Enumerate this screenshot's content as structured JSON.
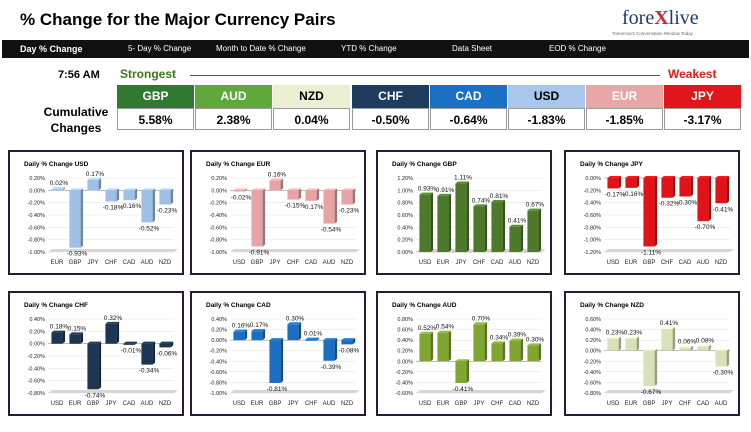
{
  "header": {
    "title": "% Change for the Major Currency Pairs",
    "logo_pre": "fore",
    "logo_x": "X",
    "logo_post": "live",
    "logo_tagline": "Tomorrow's Conversation Window Today"
  },
  "nav": {
    "tabs": [
      {
        "label": "Day % Change",
        "active": true
      },
      {
        "label": "5- Day % Change",
        "active": false
      },
      {
        "label": "Month to Date % Change",
        "active": false
      },
      {
        "label": "YTD % Change",
        "active": false
      },
      {
        "label": "Data Sheet",
        "active": false
      },
      {
        "label": "EOD % Change",
        "active": false
      }
    ]
  },
  "summary": {
    "time": "7:56 AM",
    "strongest_label": "Strongest",
    "weakest_label": "Weakest",
    "cumulative_label": "Cumulative Changes",
    "currencies": [
      {
        "name": "GBP",
        "value": "5.58%",
        "color": "#2f7a30",
        "text_color": "#ffffff"
      },
      {
        "name": "AUD",
        "value": "2.38%",
        "color": "#5fa83a",
        "text_color": "#ffffff"
      },
      {
        "name": "NZD",
        "value": "0.04%",
        "color": "#ecefd2",
        "text_color": "#000000"
      },
      {
        "name": "CHF",
        "value": "-0.50%",
        "color": "#1f3c5e",
        "text_color": "#ffffff"
      },
      {
        "name": "CAD",
        "value": "-0.64%",
        "color": "#1b70c4",
        "text_color": "#ffffff"
      },
      {
        "name": "USD",
        "value": "-1.83%",
        "color": "#a9c7ec",
        "text_color": "#000000"
      },
      {
        "name": "EUR",
        "value": "-1.85%",
        "color": "#e8a6a6",
        "text_color": "#ffffff"
      },
      {
        "name": "JPY",
        "value": "-3.17%",
        "color": "#e0161a",
        "text_color": "#ffffff"
      }
    ]
  },
  "chart_data": [
    {
      "type": "bar",
      "title": "Daily % Change USD",
      "color": "#9fc0e6",
      "categories": [
        "EUR",
        "GBP",
        "JPY",
        "CHF",
        "CAD",
        "AUD",
        "NZD"
      ],
      "values": [
        0.02,
        -0.93,
        0.17,
        -0.18,
        -0.16,
        -0.52,
        -0.23
      ],
      "labels": [
        "0.02%",
        "-0.93%",
        "0.17%",
        "-0.18%",
        "-0.16%",
        "-0.52%",
        "-0.23%"
      ],
      "ylim": [
        -1.0,
        0.2
      ],
      "yticks": [
        "0.20%",
        "0.00%",
        "-0.20%",
        "-0.40%",
        "-0.60%",
        "-0.80%",
        "-1.00%"
      ]
    },
    {
      "type": "bar",
      "title": "Daily % Change EUR",
      "color": "#e8a4a4",
      "categories": [
        "USD",
        "GBP",
        "JPY",
        "CHF",
        "CAD",
        "AUD",
        "NZD"
      ],
      "values": [
        -0.02,
        -0.91,
        0.16,
        -0.15,
        -0.17,
        -0.54,
        -0.23
      ],
      "labels": [
        "-0.02%",
        "-0.91%",
        "0.16%",
        "-0.15%",
        "-0.17%",
        "-0.54%",
        "-0.23%"
      ],
      "ylim": [
        -1.0,
        0.2
      ],
      "yticks": [
        "0.20%",
        "0.00%",
        "-0.20%",
        "-0.40%",
        "-0.60%",
        "-0.80%",
        "-1.00%"
      ]
    },
    {
      "type": "bar",
      "title": "Daily % Change GBP",
      "color": "#4d7a2a",
      "categories": [
        "USD",
        "EUR",
        "JPY",
        "CHF",
        "CAD",
        "AUD",
        "NZD"
      ],
      "values": [
        0.93,
        0.91,
        1.11,
        0.74,
        0.81,
        0.41,
        0.67
      ],
      "labels": [
        "0.93%",
        "0.91%",
        "1.11%",
        "0.74%",
        "0.81%",
        "0.41%",
        "0.67%"
      ],
      "ylim": [
        0.0,
        1.2
      ],
      "yticks": [
        "1.20%",
        "1.00%",
        "0.80%",
        "0.60%",
        "0.40%",
        "0.20%",
        "0.00%"
      ]
    },
    {
      "type": "bar",
      "title": "Daily % Change JPY",
      "color": "#e01418",
      "categories": [
        "USD",
        "EUR",
        "GBP",
        "CHF",
        "CAD",
        "AUD",
        "NZD"
      ],
      "values": [
        -0.17,
        -0.16,
        -1.11,
        -0.32,
        -0.3,
        -0.7,
        -0.41
      ],
      "labels": [
        "-0.17%",
        "-0.16%",
        "-1.11%",
        "-0.32%",
        "-0.30%",
        "-0.70%",
        "-0.41%"
      ],
      "ylim": [
        -1.2,
        0.0
      ],
      "yticks": [
        "0.00%",
        "-0.20%",
        "-0.40%",
        "-0.60%",
        "-0.80%",
        "-1.00%",
        "-1.20%"
      ]
    },
    {
      "type": "bar",
      "title": "Daily % Change CHF",
      "color": "#1c3552",
      "categories": [
        "USD",
        "EUR",
        "GBP",
        "JPY",
        "CAD",
        "AUD",
        "NZD"
      ],
      "values": [
        0.18,
        0.15,
        -0.74,
        0.32,
        -0.01,
        -0.34,
        -0.06
      ],
      "labels": [
        "0.18%",
        "0.15%",
        "-0.74%",
        "0.32%",
        "-0.01%",
        "-0.34%",
        "-0.06%"
      ],
      "ylim": [
        -0.8,
        0.4
      ],
      "yticks": [
        "0.40%",
        "0.20%",
        "0.00%",
        "-0.20%",
        "-0.40%",
        "-0.60%",
        "-0.80%"
      ]
    },
    {
      "type": "bar",
      "title": "Daily % Change CAD",
      "color": "#1b6fc2",
      "categories": [
        "USD",
        "EUR",
        "GBP",
        "JPY",
        "CHF",
        "AUD",
        "NZD"
      ],
      "values": [
        0.16,
        0.17,
        -0.81,
        0.3,
        0.01,
        -0.39,
        -0.08
      ],
      "labels": [
        "0.16%",
        "0.17%",
        "-0.81%",
        "0.30%",
        "0.01%",
        "-0.39%",
        "-0.08%"
      ],
      "ylim": [
        -1.0,
        0.4
      ],
      "yticks": [
        "0.40%",
        "0.20%",
        "0.00%",
        "-0.20%",
        "-0.40%",
        "-0.60%",
        "-0.80%",
        "-1.00%"
      ]
    },
    {
      "type": "bar",
      "title": "Daily % Change AUD",
      "color": "#7ea630",
      "categories": [
        "USD",
        "EUR",
        "GBP",
        "JPY",
        "CHF",
        "CAD",
        "NZD"
      ],
      "values": [
        0.52,
        0.54,
        -0.41,
        0.7,
        0.34,
        0.39,
        0.3
      ],
      "labels": [
        "0.52%",
        "0.54%",
        "-0.41%",
        "0.70%",
        "0.34%",
        "0.39%",
        "0.30%"
      ],
      "ylim": [
        -0.6,
        0.8
      ],
      "yticks": [
        "0.80%",
        "0.60%",
        "0.40%",
        "0.20%",
        "0.00%",
        "-0.20%",
        "-0.40%",
        "-0.60%"
      ]
    },
    {
      "type": "bar",
      "title": "Daily % Change NZD",
      "color": "#d8e2b8",
      "categories": [
        "USD",
        "EUR",
        "GBP",
        "JPY",
        "CHF",
        "CAD",
        "AUD"
      ],
      "values": [
        0.23,
        0.23,
        -0.67,
        0.41,
        0.06,
        0.08,
        -0.3
      ],
      "labels": [
        "0.23%",
        "0.23%",
        "-0.67%",
        "0.41%",
        "0.06%",
        "0.08%",
        "-0.30%"
      ],
      "ylim": [
        -0.8,
        0.6
      ],
      "yticks": [
        "0.60%",
        "0.40%",
        "0.20%",
        "0.00%",
        "-0.20%",
        "-0.40%",
        "-0.60%",
        "-0.80%"
      ]
    }
  ]
}
